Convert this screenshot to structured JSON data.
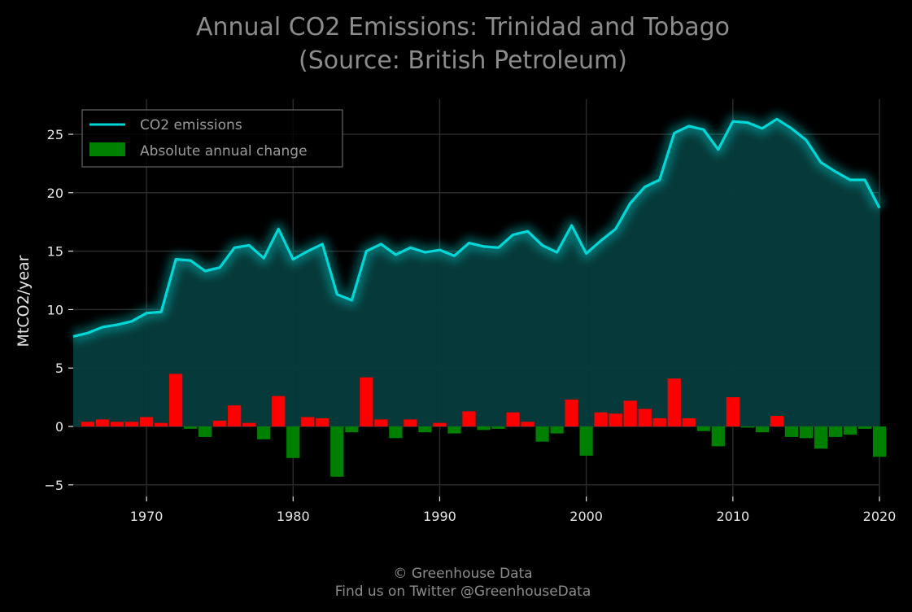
{
  "chart_data": {
    "type": "line",
    "title": "Annual CO2 Emissions: Trinidad and Tobago",
    "subtitle": "(Source: British Petroleum)",
    "xlabel": "",
    "ylabel": "MtCO2/year",
    "xlim": [
      1965,
      2020
    ],
    "ylim": [
      -6,
      28
    ],
    "x_ticks": [
      1970,
      1980,
      1990,
      2000,
      2010,
      2020
    ],
    "y_ticks": [
      -5,
      0,
      5,
      10,
      15,
      20,
      25
    ],
    "y_tick_labels": [
      "−5",
      "0",
      "5",
      "10",
      "15",
      "20",
      "25"
    ],
    "grid": true,
    "legend_position": "top-left",
    "colors": {
      "line": "#00d7d7",
      "area": "#063c3c",
      "increase": "#ff0000",
      "decrease": "#008000"
    },
    "series": [
      {
        "name": "CO2 emissions",
        "kind": "line",
        "x": [
          1965,
          1966,
          1967,
          1968,
          1969,
          1970,
          1971,
          1972,
          1973,
          1974,
          1975,
          1976,
          1977,
          1978,
          1979,
          1980,
          1981,
          1982,
          1983,
          1984,
          1985,
          1986,
          1987,
          1988,
          1989,
          1990,
          1991,
          1992,
          1993,
          1994,
          1995,
          1996,
          1997,
          1998,
          1999,
          2000,
          2001,
          2002,
          2003,
          2004,
          2005,
          2006,
          2007,
          2008,
          2009,
          2010,
          2011,
          2012,
          2013,
          2014,
          2015,
          2016,
          2017,
          2018,
          2019,
          2020
        ],
        "values": [
          7.7,
          8.0,
          8.5,
          8.7,
          9.0,
          9.7,
          9.8,
          14.3,
          14.2,
          13.3,
          13.6,
          15.3,
          15.5,
          14.4,
          16.9,
          14.3,
          15.0,
          15.6,
          11.3,
          10.8,
          15.0,
          15.6,
          14.7,
          15.3,
          14.9,
          15.1,
          14.6,
          15.7,
          15.4,
          15.3,
          16.4,
          16.7,
          15.5,
          14.9,
          17.2,
          14.8,
          15.9,
          16.9,
          19.1,
          20.5,
          21.1,
          25.1,
          25.7,
          25.4,
          23.7,
          26.1,
          26.0,
          25.5,
          26.3,
          25.5,
          24.5,
          22.6,
          21.8,
          21.1,
          21.1,
          18.7
        ]
      },
      {
        "name": "Absolute annual change",
        "kind": "bar",
        "x": [
          1966,
          1967,
          1968,
          1969,
          1970,
          1971,
          1972,
          1973,
          1974,
          1975,
          1976,
          1977,
          1978,
          1979,
          1980,
          1981,
          1982,
          1983,
          1984,
          1985,
          1986,
          1987,
          1988,
          1989,
          1990,
          1991,
          1992,
          1993,
          1994,
          1995,
          1996,
          1997,
          1998,
          1999,
          2000,
          2001,
          2002,
          2003,
          2004,
          2005,
          2006,
          2007,
          2008,
          2009,
          2010,
          2011,
          2012,
          2013,
          2014,
          2015,
          2016,
          2017,
          2018,
          2019,
          2020
        ],
        "values": [
          0.4,
          0.6,
          0.4,
          0.4,
          0.8,
          0.3,
          4.5,
          -0.2,
          -0.9,
          0.5,
          1.8,
          0.3,
          -1.1,
          2.6,
          -2.7,
          0.8,
          0.7,
          -4.3,
          -0.5,
          4.2,
          0.6,
          -1.0,
          0.6,
          -0.5,
          0.3,
          -0.6,
          1.3,
          -0.3,
          -0.2,
          1.2,
          0.4,
          -1.3,
          -0.6,
          2.3,
          -2.5,
          1.2,
          1.1,
          2.2,
          1.5,
          0.7,
          4.1,
          0.7,
          -0.4,
          -1.7,
          2.5,
          -0.1,
          -0.5,
          0.9,
          -0.9,
          -1.0,
          -1.9,
          -0.9,
          -0.7,
          -0.2,
          -2.6
        ]
      }
    ]
  },
  "footer": {
    "line1": "© Greenhouse Data",
    "line2": "Find us on Twitter @GreenhouseData"
  }
}
